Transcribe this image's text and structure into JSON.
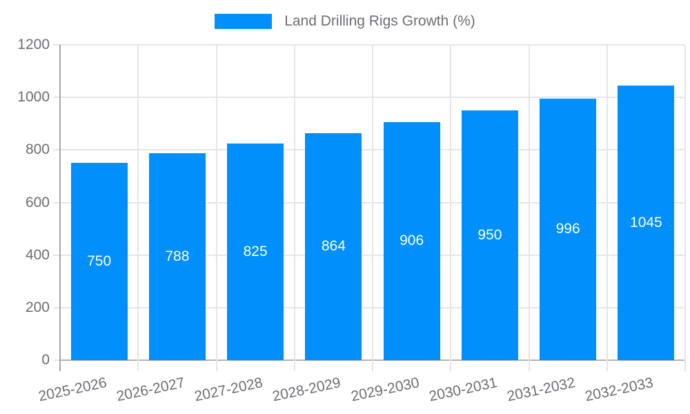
{
  "colors": {
    "accent": "#008FFB",
    "grid": "#e5e5e8",
    "axis_line": "#a5a5aa",
    "baseline": "#b2b2b6",
    "text": "#6b6e72",
    "value_label": "#ffffff",
    "background": "#ffffff"
  },
  "legend": {
    "label": "Land Drilling Rigs Growth (%)"
  },
  "chart_data": {
    "type": "bar",
    "title": "Land Drilling Rigs Growth (%)",
    "series_name": "Land Drilling Rigs Growth (%)",
    "categories": [
      "2025-2026",
      "2026-2027",
      "2027-2028",
      "2028-2029",
      "2029-2030",
      "2030-2031",
      "2031-2032",
      "2032-2033"
    ],
    "values": [
      750,
      788,
      825,
      864,
      906,
      950,
      996,
      1045
    ],
    "xlabel": "",
    "ylabel": "",
    "ylim": [
      0,
      1200
    ],
    "yticks": [
      0,
      200,
      400,
      600,
      800,
      1000,
      1200
    ],
    "grid": "on",
    "legend_position": "top-center",
    "value_labels_position": "inside-center",
    "x_label_rotation_deg": -12
  }
}
